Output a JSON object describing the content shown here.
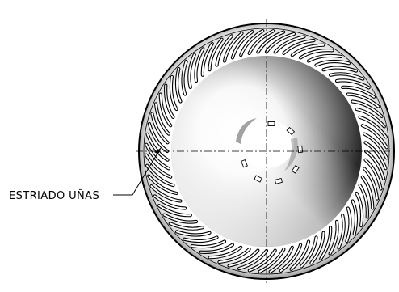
{
  "callout": {
    "label": "ESTRIADO UÑAS"
  },
  "wheel": {
    "outer_ring_color": "#000000",
    "body_highlight": "#ffffff",
    "body_shadow": "#1a1a1a",
    "centerline_color": "#000000",
    "centerline_style": "dash-dot",
    "serration_count": 72,
    "center_slot_count": 7
  }
}
